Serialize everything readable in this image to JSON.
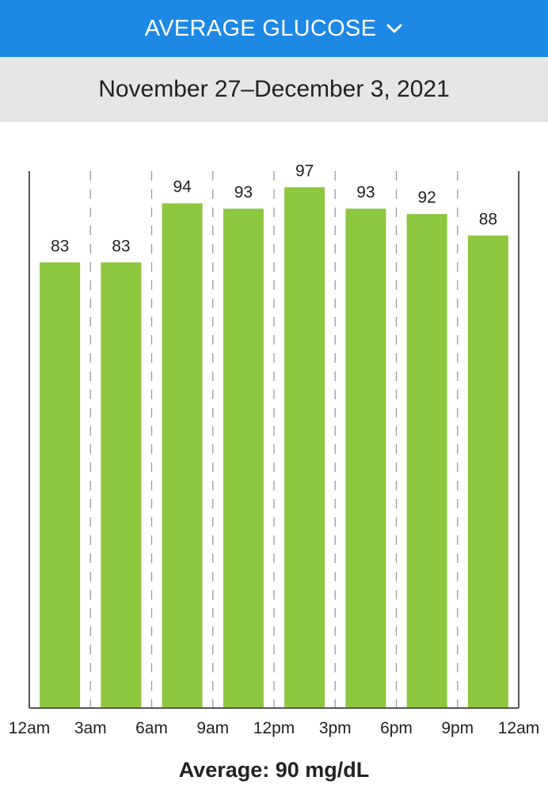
{
  "header": {
    "title": "AVERAGE GLUCOSE",
    "dropdown_icon": "chevron-down-icon",
    "color": "#1e88e5"
  },
  "date_range": "November 27–December 3, 2021",
  "summary": {
    "label": "Average:",
    "value": "90 mg/dL"
  },
  "colors": {
    "bar": "#8dc63f",
    "axis": "#555555",
    "grid": "#9a9a9a"
  },
  "chart_data": {
    "type": "bar",
    "title": "",
    "xlabel": "",
    "ylabel": "",
    "x_ticks": [
      "12am",
      "3am",
      "6am",
      "9am",
      "12pm",
      "3pm",
      "6pm",
      "9pm",
      "12am"
    ],
    "values": [
      83,
      83,
      94,
      93,
      97,
      93,
      92,
      88
    ],
    "ylim": [
      0,
      100
    ],
    "grid": "vertical-dashed",
    "data_labels": true
  }
}
